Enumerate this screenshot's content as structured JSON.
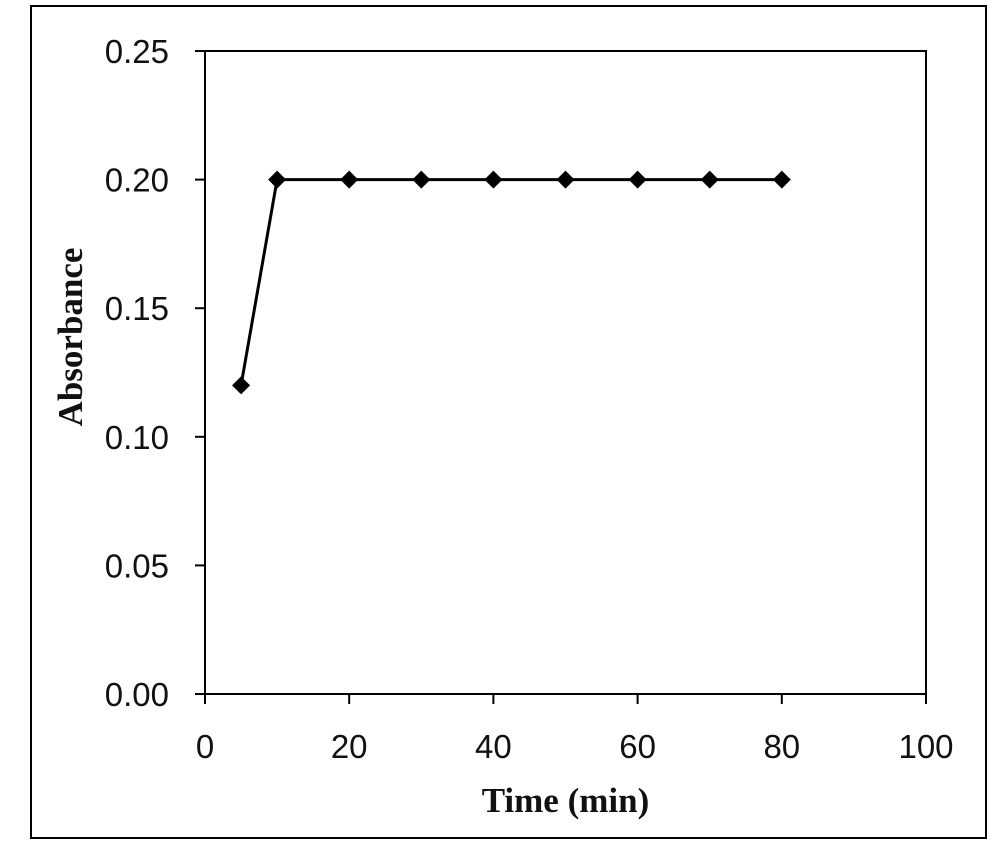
{
  "chart_data": {
    "type": "line",
    "title": "",
    "xlabel": "Time (min)",
    "ylabel": "Absorbance",
    "xlim": [
      0,
      100
    ],
    "ylim": [
      0,
      0.25
    ],
    "x_ticks": [
      "0",
      "20",
      "40",
      "60",
      "80",
      "100"
    ],
    "y_ticks": [
      "0.00",
      "0.05",
      "0.10",
      "0.15",
      "0.20",
      "0.25"
    ],
    "grid": false,
    "legend": "none",
    "series": [
      {
        "marker": "diamond",
        "color": "#000000",
        "x": [
          5,
          10,
          20,
          30,
          40,
          50,
          60,
          70,
          80
        ],
        "y": [
          0.12,
          0.2,
          0.2,
          0.2,
          0.2,
          0.2,
          0.2,
          0.2,
          0.2
        ]
      }
    ]
  }
}
